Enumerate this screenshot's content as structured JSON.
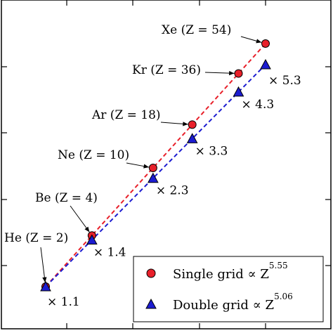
{
  "chart_data": {
    "type": "scatter",
    "x_scale": "log",
    "y_scale": "log",
    "title": "",
    "xlabel": "",
    "ylabel": "",
    "grid": false,
    "legend_position": "bottom-right",
    "series": [
      {
        "name": "Single grid",
        "legend_exponent": "5.55",
        "marker": "circle",
        "color": "#e8202a",
        "points": [
          {
            "label": "He (Z = 2)",
            "z": 2
          },
          {
            "label": "Be (Z = 4)",
            "z": 4
          },
          {
            "label": "Ne (Z = 10)",
            "z": 10
          },
          {
            "label": "Ar (Z = 18)",
            "z": 18
          },
          {
            "label": "Kr (Z = 36)",
            "z": 36
          },
          {
            "label": "Xe (Z = 54)",
            "z": 54
          }
        ]
      },
      {
        "name": "Double grid",
        "legend_exponent": "5.06",
        "marker": "triangle",
        "color": "#1c1cd0",
        "points": [
          {
            "z": 2,
            "ratio": "× 1.1"
          },
          {
            "z": 4,
            "ratio": "× 1.4"
          },
          {
            "z": 10,
            "ratio": "× 2.3"
          },
          {
            "z": 18,
            "ratio": "× 3.3"
          },
          {
            "z": 36,
            "ratio": "× 4.3"
          },
          {
            "z": 54,
            "ratio": "× 5.3"
          }
        ]
      }
    ],
    "legend_text": "Single grid ∝ Z",
    "legend_text_double": "Double grid ∝ Z"
  }
}
